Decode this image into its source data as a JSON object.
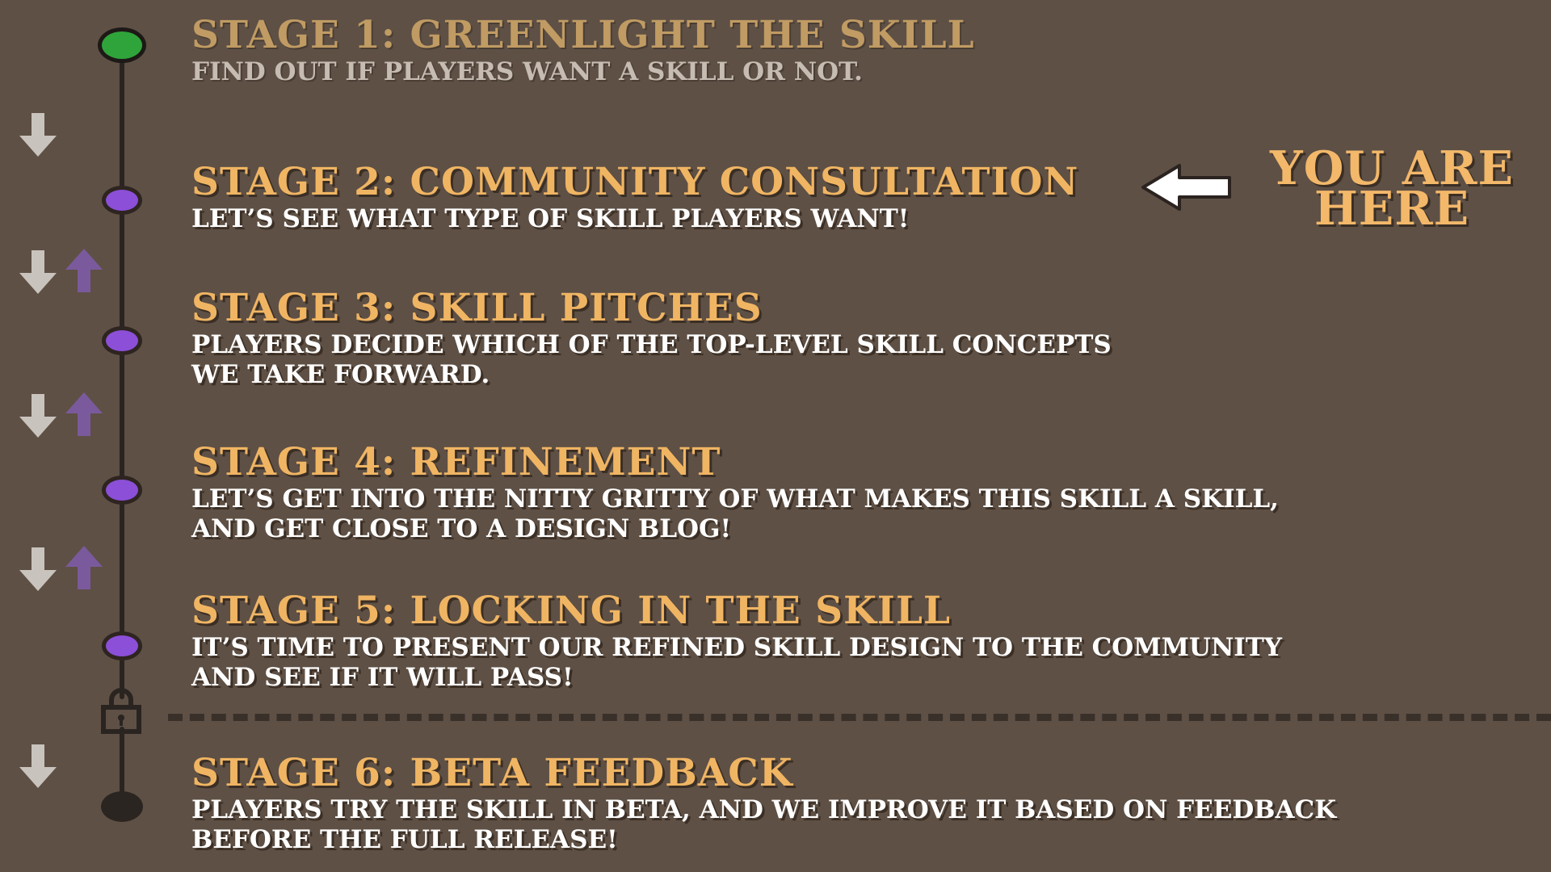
{
  "stages": [
    {
      "title": "STAGE 1: GREENLIGHT THE SKILL",
      "description": "FIND OUT IF PLAYERS WANT A SKILL OR NOT."
    },
    {
      "title": "STAGE 2: COMMUNITY CONSULTATION",
      "description": "LET’S SEE WHAT TYPE OF SKILL PLAYERS WANT!"
    },
    {
      "title": "STAGE 3: SKILL PITCHES",
      "description": "PLAYERS DECIDE WHICH OF THE TOP-LEVEL SKILL CONCEPTS\nWE TAKE FORWARD."
    },
    {
      "title": "STAGE 4: REFINEMENT",
      "description": "LET’S GET INTO THE NITTY GRITTY OF WHAT MAKES THIS SKILL A SKILL,\nAND GET CLOSE TO A DESIGN BLOG!"
    },
    {
      "title": "STAGE 5: LOCKING IN THE SKILL",
      "description": "IT’S TIME TO PRESENT OUR REFINED SKILL DESIGN TO THE COMMUNITY\n AND SEE IF IT WILL PASS!"
    },
    {
      "title": "STAGE 6: BETA FEEDBACK",
      "description": "PLAYERS TRY THE SKILL IN BETA, AND WE IMPROVE IT BASED ON FEEDBACK\nBEFORE THE FULL RELEASE!"
    }
  ],
  "you_are_here": {
    "line1": "YOU ARE",
    "line2": "HERE"
  },
  "current_stage": 2,
  "colors": {
    "background": "#5e5045",
    "title": "#f0b563",
    "completed_node": "#2fa43a",
    "pending_node": "#8c4fd8",
    "down_arrow": "#c9c3bd",
    "up_arrow": "#7a5a9c"
  },
  "icons": {
    "progress_down": "arrow-down-icon",
    "progress_back": "arrow-up-icon",
    "current_pointer": "arrow-left-icon",
    "gate": "padlock-icon"
  }
}
